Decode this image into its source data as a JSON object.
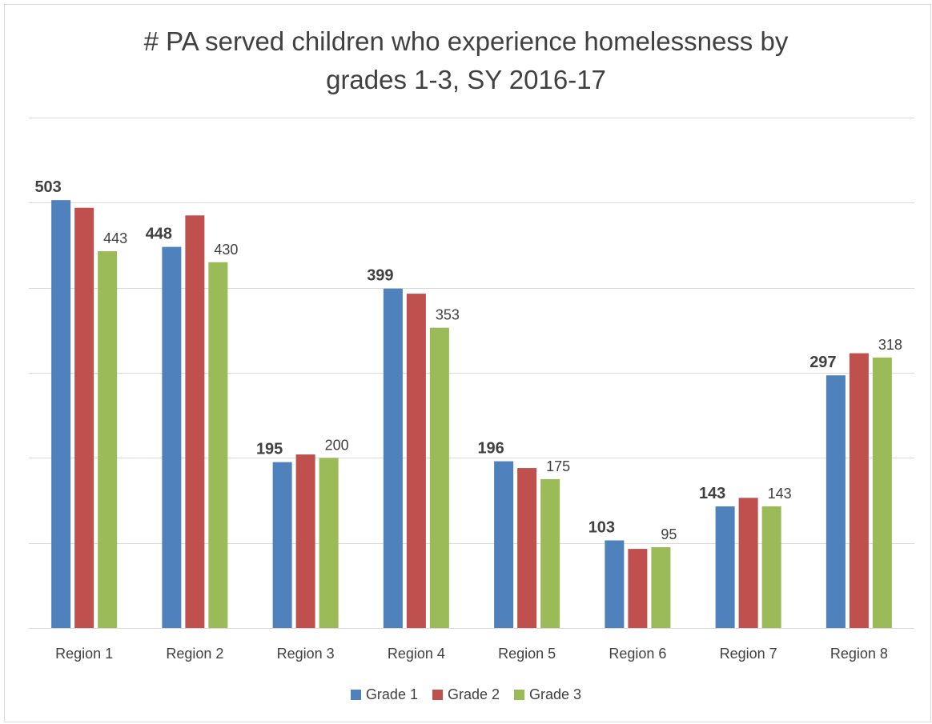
{
  "chart_data": {
    "type": "bar",
    "title": "# PA served children who experience homelessness by grades 1-3, SY 2016-17",
    "title_lines": [
      "# PA served children who experience homelessness by",
      "grades 1-3, SY 2016-17"
    ],
    "categories": [
      "Region 1",
      "Region 2",
      "Region 3",
      "Region 4",
      "Region 5",
      "Region 6",
      "Region 7",
      "Region 8"
    ],
    "series": [
      {
        "name": "Grade 1",
        "color": "#4f81bd",
        "values": [
          503,
          448,
          195,
          399,
          196,
          103,
          143,
          297
        ],
        "labels": [
          "503",
          "448",
          "195",
          "399",
          "196",
          "103",
          "143",
          "297"
        ]
      },
      {
        "name": "Grade 2",
        "color": "#c0504d",
        "values": [
          494,
          485,
          204,
          393,
          188,
          93,
          153,
          323
        ],
        "labels": [
          "",
          "",
          "",
          "",
          "",
          "",
          "",
          ""
        ]
      },
      {
        "name": "Grade 3",
        "color": "#9bbb59",
        "values": [
          443,
          430,
          200,
          353,
          175,
          95,
          143,
          318
        ],
        "labels": [
          "443",
          "430",
          "200",
          "353",
          "175",
          "95",
          "143",
          "318"
        ]
      }
    ],
    "ylim": [
      0,
      600
    ],
    "grid": true,
    "legend_position": "bottom",
    "xlabel": "",
    "ylabel": ""
  }
}
